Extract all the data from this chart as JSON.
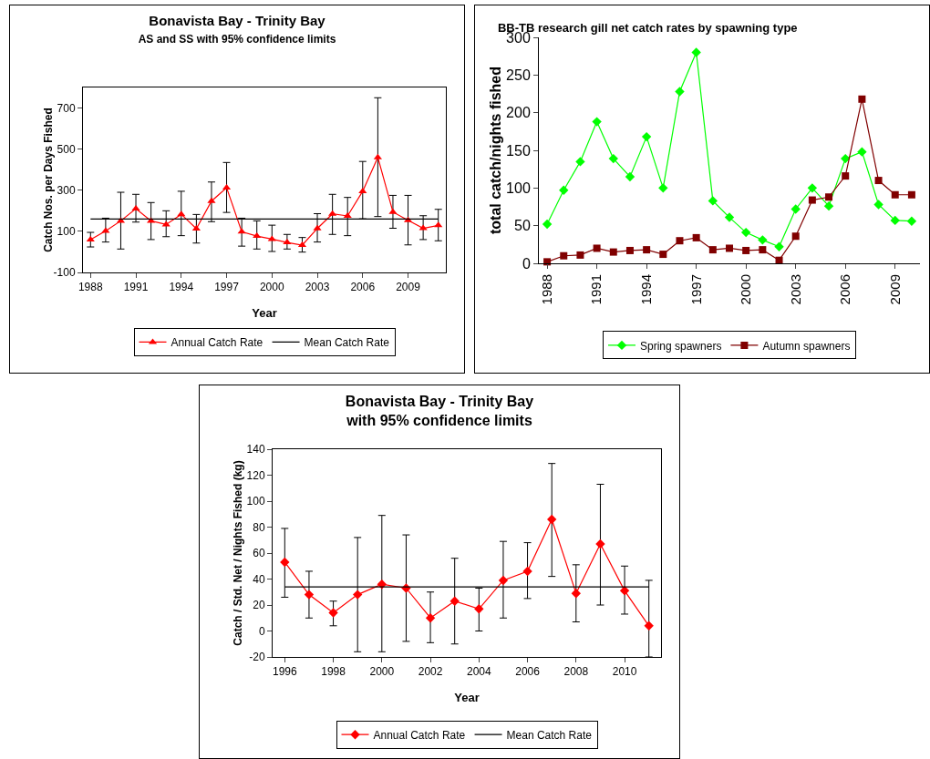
{
  "chart_data": [
    {
      "type": "line",
      "title": "Bonavista Bay - Trinity Bay",
      "subtitle": "AS and SS with 95% confidence limits",
      "xlabel": "Year",
      "ylabel": "Catch Nos. per Days Fished",
      "x": [
        1988,
        1989,
        1990,
        1991,
        1992,
        1993,
        1994,
        1995,
        1996,
        1997,
        1998,
        1999,
        2000,
        2001,
        2002,
        2003,
        2004,
        2005,
        2006,
        2007,
        2008,
        2009,
        2010,
        2011
      ],
      "xlim": [
        1987.5,
        2011.5
      ],
      "xticks": [
        1988,
        1991,
        1994,
        1997,
        2000,
        2003,
        2006,
        2009
      ],
      "ylim": [
        -100,
        800
      ],
      "yticks": [
        -100,
        100,
        300,
        500,
        700
      ],
      "series": [
        {
          "name": "Annual Catch Rate",
          "color": "#ff0000",
          "marker": "triangle",
          "values": [
            60,
            102,
            151,
            210,
            151,
            133,
            183,
            113,
            247,
            312,
            98,
            77,
            62,
            46,
            33,
            114,
            185,
            175,
            295,
            460,
            194,
            154,
            115,
            129
          ],
          "errors": [
            [
              24,
              95
            ],
            [
              48,
              164
            ],
            [
              14,
              290
            ],
            [
              145,
              280
            ],
            [
              60,
              240
            ],
            [
              74,
              200
            ],
            [
              79,
              295
            ],
            [
              43,
              182
            ],
            [
              147,
              340
            ],
            [
              192,
              435
            ],
            [
              28,
              164
            ],
            [
              14,
              151
            ],
            [
              2,
              130
            ],
            [
              14,
              85
            ],
            [
              -1,
              70
            ],
            [
              48,
              186
            ],
            [
              85,
              280
            ],
            [
              79,
              265
            ],
            [
              161,
              440
            ],
            [
              172,
              750
            ],
            [
              115,
              275
            ],
            [
              34,
              275
            ],
            [
              60,
              176
            ],
            [
              54,
              207
            ]
          ]
        },
        {
          "name": "Mean Catch Rate",
          "color": "#000000",
          "marker": "none",
          "x": [
            1988,
            2011
          ],
          "values": [
            160,
            160
          ]
        }
      ],
      "legend": "bottom",
      "grid": false
    },
    {
      "type": "line",
      "title": "BB-TB research gill net catch rates by spawning type",
      "ylabel": "total catch/nights fished",
      "x": [
        1988,
        1989,
        1990,
        1991,
        1992,
        1993,
        1994,
        1995,
        1996,
        1997,
        1998,
        1999,
        2000,
        2001,
        2002,
        2003,
        2004,
        2005,
        2006,
        2007,
        2008,
        2009,
        2010
      ],
      "xlim": [
        1987.5,
        2010.5
      ],
      "xticks": [
        1988,
        1991,
        1994,
        1997,
        2000,
        2003,
        2006,
        2009
      ],
      "ylim": [
        0,
        300
      ],
      "yticks": [
        0,
        50,
        100,
        150,
        200,
        250,
        300
      ],
      "series": [
        {
          "name": "Spring spawners",
          "color": "#00ff00",
          "marker": "diamond",
          "values": [
            52,
            97,
            135,
            188,
            139,
            115,
            168,
            100,
            228,
            280,
            83,
            61,
            41,
            31,
            22,
            72,
            100,
            76,
            139,
            148,
            78,
            57,
            56
          ]
        },
        {
          "name": "Autumn spawners",
          "color": "#800000",
          "marker": "square",
          "values": [
            2,
            10,
            11,
            20,
            15,
            17,
            18,
            12,
            30,
            34,
            18,
            20,
            17,
            18,
            4,
            36,
            84,
            88,
            116,
            218,
            110,
            91,
            91
          ]
        }
      ],
      "legend": "bottom",
      "grid": false
    },
    {
      "type": "line",
      "title": "Bonavista Bay - Trinity Bay",
      "subtitle": "with 95% confidence limits",
      "xlabel": "Year",
      "ylabel": "Catch / Std. Net / Nights Fished (kg)",
      "x": [
        1996,
        1997,
        1998,
        1999,
        2000,
        2001,
        2002,
        2003,
        2004,
        2005,
        2006,
        2007,
        2008,
        2009,
        2010,
        2011
      ],
      "xlim": [
        1995.5,
        2011.5
      ],
      "xticks": [
        1996,
        1998,
        2000,
        2002,
        2004,
        2006,
        2008,
        2010
      ],
      "ylim": [
        -20,
        140
      ],
      "yticks": [
        -20,
        0,
        20,
        40,
        60,
        80,
        100,
        120,
        140
      ],
      "series": [
        {
          "name": "Annual Catch Rate",
          "color": "#ff0000",
          "marker": "diamond",
          "values": [
            53,
            28,
            14,
            28,
            36,
            33,
            10,
            23,
            17,
            39,
            46,
            86,
            29,
            67,
            31,
            4
          ],
          "errors": [
            [
              26,
              79
            ],
            [
              10,
              46
            ],
            [
              4,
              23
            ],
            [
              -16,
              72
            ],
            [
              -16,
              89
            ],
            [
              -8,
              74
            ],
            [
              -9,
              30
            ],
            [
              -10,
              56
            ],
            [
              0,
              33
            ],
            [
              10,
              69
            ],
            [
              25,
              68
            ],
            [
              42,
              129
            ],
            [
              7,
              51
            ],
            [
              20,
              113
            ],
            [
              13,
              50
            ],
            [
              -20,
              39
            ]
          ]
        },
        {
          "name": "Mean Catch Rate",
          "color": "#000000",
          "marker": "none",
          "x": [
            1996,
            2011
          ],
          "values": [
            34,
            34
          ]
        }
      ],
      "legend": "bottom",
      "grid": false
    }
  ]
}
